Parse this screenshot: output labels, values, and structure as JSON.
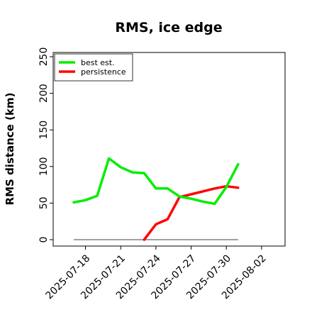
{
  "chart_data": {
    "type": "line",
    "title": "RMS, ice edge",
    "ylabel": "RMS distance (km)",
    "xlabel": "",
    "ylim": [
      0,
      250
    ],
    "yticks": [
      0,
      50,
      100,
      150,
      200,
      250
    ],
    "xlim": [
      "2025-07-15T06:00",
      "2025-08-04"
    ],
    "xticks": [
      "2025-07-18",
      "2025-07-21",
      "2025-07-24",
      "2025-07-27",
      "2025-07-30",
      "2025-08-02"
    ],
    "grid": false,
    "legend_position": "upper-left",
    "baseline": {
      "value": 0,
      "x": [
        "2025-07-17",
        "2025-07-31"
      ],
      "color": "#808080"
    },
    "series": [
      {
        "name": "best est.",
        "color": "#00ee00",
        "x": [
          "2025-07-17",
          "2025-07-18",
          "2025-07-19",
          "2025-07-20",
          "2025-07-21",
          "2025-07-22",
          "2025-07-23",
          "2025-07-24",
          "2025-07-25",
          "2025-07-26",
          "2025-07-27",
          "2025-07-28",
          "2025-07-29",
          "2025-07-30",
          "2025-07-31"
        ],
        "values": [
          51,
          54,
          60,
          111,
          99,
          92,
          91,
          70,
          70,
          59,
          56,
          52,
          49,
          72,
          103
        ]
      },
      {
        "name": "persistence",
        "color": "#ff0000",
        "x": [
          "2025-07-23",
          "2025-07-24",
          "2025-07-25",
          "2025-07-26",
          "2025-07-27",
          "2025-07-28",
          "2025-07-29",
          "2025-07-30",
          "2025-07-31"
        ],
        "values": [
          0,
          21,
          28,
          58,
          62,
          66,
          70,
          73,
          71
        ]
      }
    ]
  }
}
